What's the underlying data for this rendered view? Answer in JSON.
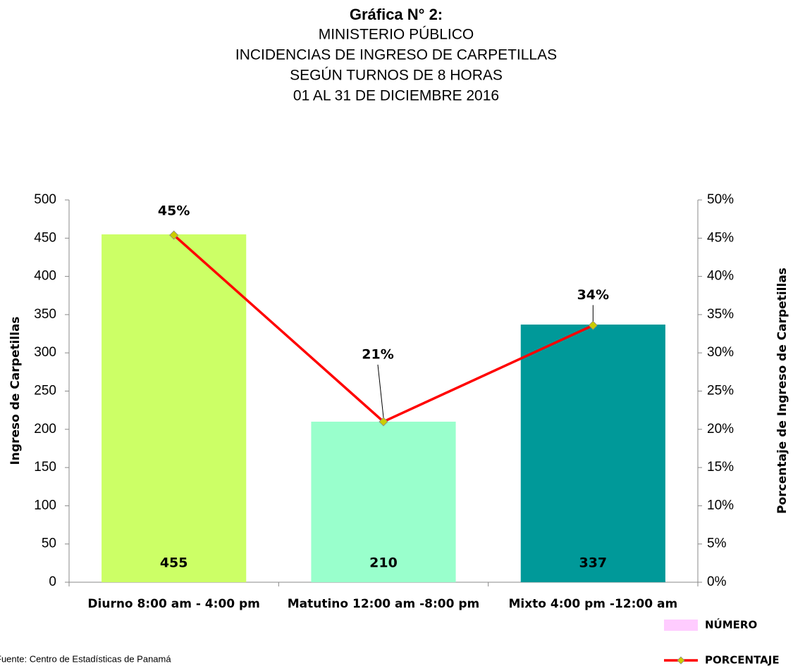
{
  "chart_data": {
    "type": "bar",
    "title": "Gráfica N° 2:",
    "subtitle": [
      "MINISTERIO PÚBLICO",
      "INCIDENCIAS DE INGRESO DE CARPETILLAS",
      "SEGÚN  TURNOS DE 8 HORAS",
      "01 AL 31 DE DICIEMBRE 2016"
    ],
    "ylabel": "Ingreso de Carpetillas",
    "y2label": "Porcentaje de Ingreso de Carpetillas",
    "categories": [
      "Diurno 8:00 am - 4:00 pm",
      "Matutino 12:00 am -8:00 pm",
      "Mixto 4:00 pm -12:00 am"
    ],
    "series": [
      {
        "name": "NÚMERO",
        "type": "bar",
        "color": "#ffccff",
        "bar_colors": [
          "#ccff66",
          "#99ffcc",
          "#009999"
        ],
        "values": [
          455,
          210,
          337
        ]
      },
      {
        "name": "PORCENTAJE",
        "type": "line",
        "axis": "y2",
        "color": "#ff0000",
        "marker_color": "#cccc00",
        "values": [
          45.4,
          21.0,
          33.6
        ],
        "value_labels": [
          "45%",
          "21%",
          "34%"
        ]
      }
    ],
    "ylim": [
      0,
      500
    ],
    "yticks": [
      0,
      50,
      100,
      150,
      200,
      250,
      300,
      350,
      400,
      450,
      500
    ],
    "y2lim": [
      0,
      50
    ],
    "y2ticks": [
      {
        "value": 0,
        "label": "0%"
      },
      {
        "value": 5,
        "label": "5%"
      },
      {
        "value": 10,
        "label": "10%"
      },
      {
        "value": 15,
        "label": "15%"
      },
      {
        "value": 20,
        "label": "20%"
      },
      {
        "value": 25,
        "label": "25%"
      },
      {
        "value": 30,
        "label": "30%"
      },
      {
        "value": 35,
        "label": "35%"
      },
      {
        "value": 40,
        "label": "40%"
      },
      {
        "value": 45,
        "label": "45%"
      },
      {
        "value": 50,
        "label": "50%"
      }
    ],
    "legend": "bottom-right",
    "source": "Fuente: Centro de Estadísticas de Panamá"
  }
}
